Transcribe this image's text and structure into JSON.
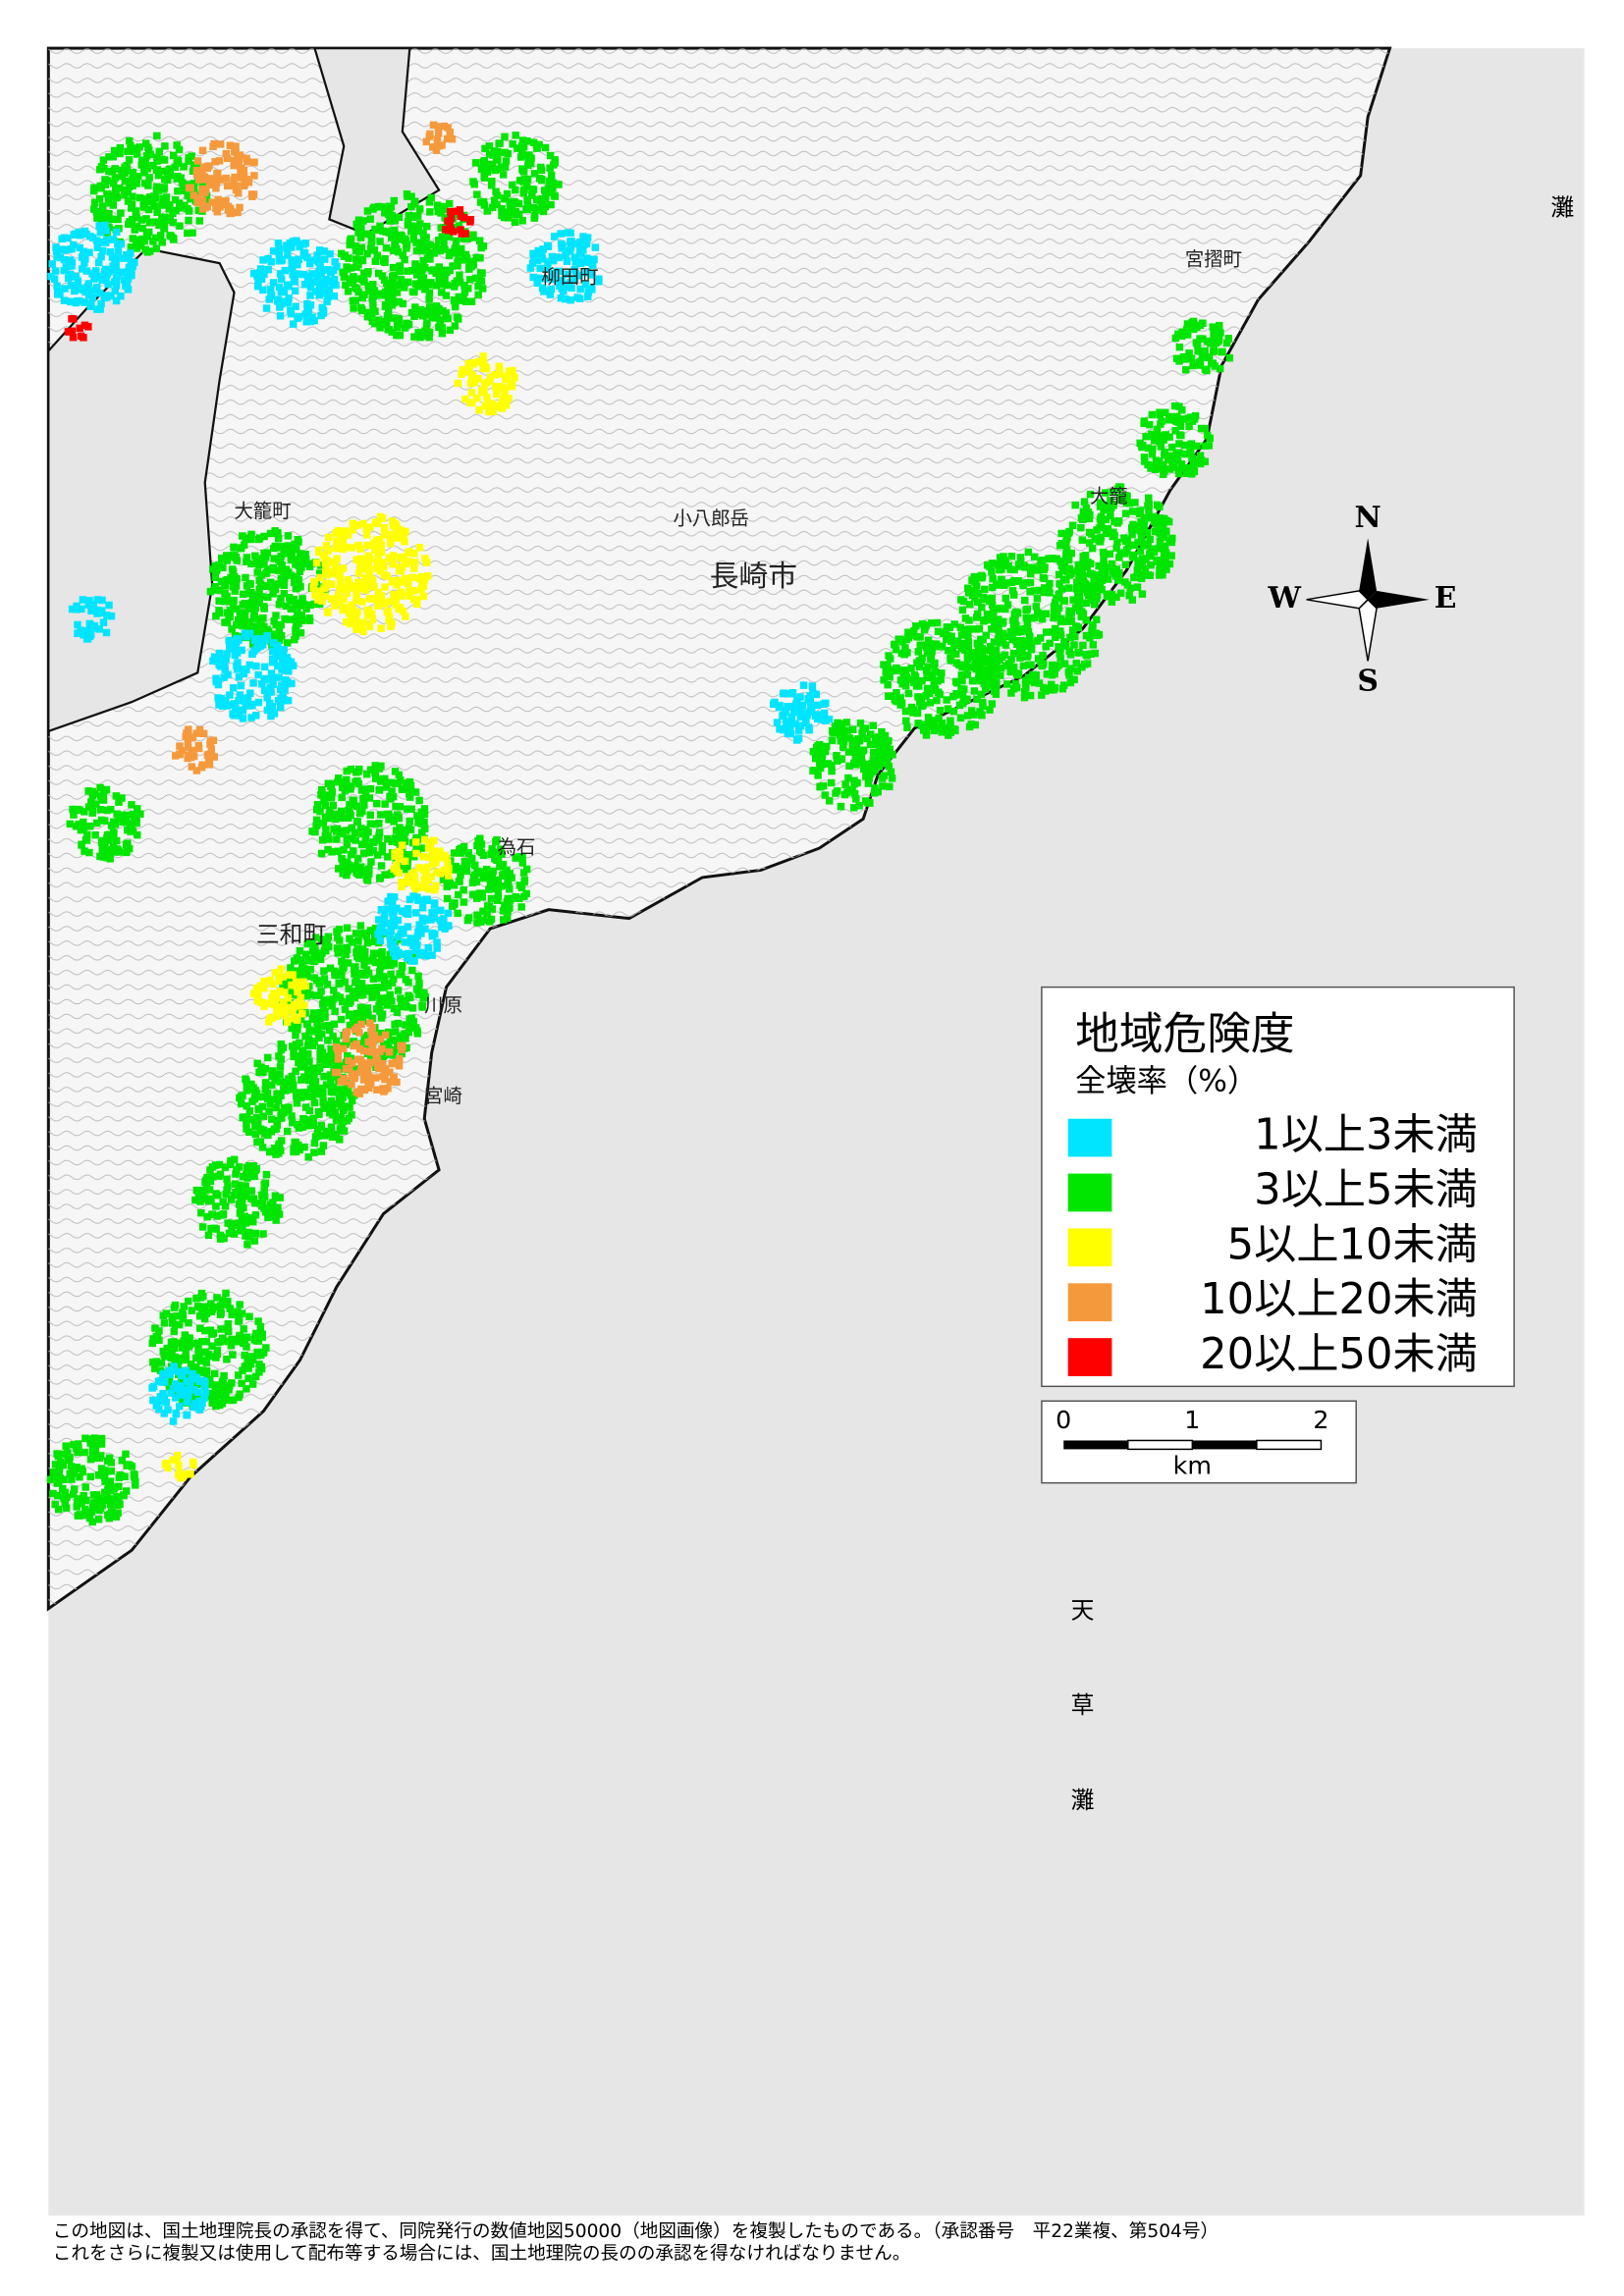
{
  "map": {
    "legend": {
      "title": "地域危険度",
      "subtitle": "全壊率（%）",
      "items": [
        {
          "label": "1以上3未満",
          "color": "#00e5ff"
        },
        {
          "label": "3以上5未満",
          "color": "#00e600"
        },
        {
          "label": "5以上10未満",
          "color": "#ffff00"
        },
        {
          "label": "10以上20未満",
          "color": "#f59a3c"
        },
        {
          "label": "20以上50未満",
          "color": "#ff0000"
        }
      ]
    },
    "scale_bar": {
      "ticks": [
        "0",
        "1",
        "2"
      ],
      "unit": "km"
    },
    "compass": {
      "n": "N",
      "s": "S",
      "e": "E",
      "w": "W"
    },
    "place_labels": [
      "長崎市",
      "宮摺町",
      "大籠町",
      "柳田町",
      "為石",
      "川原",
      "宮崎",
      "大籠",
      "三和町",
      "小八郎岳"
    ],
    "sea_labels": [
      "灘",
      "天",
      "草",
      "灘"
    ],
    "footer": [
      "この地図は、国土地理院長の承認を得て、同院発行の数値地図50000（地図画像）を複製したものである。（承認番号　平22業複、第504号）",
      "これをさらに複製又は使用して配布等する場合には、国土地理院の長のの承認を得なければなりません。"
    ]
  }
}
